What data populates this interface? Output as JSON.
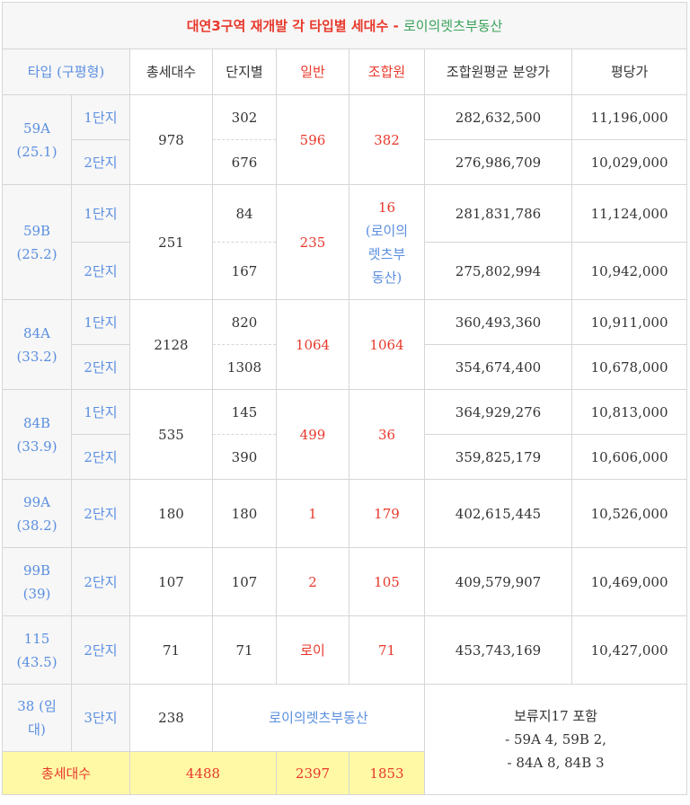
{
  "title": {
    "main": "대연3구역 재개발 각 타입별 세대수",
    "sep": " - ",
    "sub": "로이의렛츠부동산"
  },
  "headers": [
    "타입 (구평형)",
    "총세대수",
    "단지별",
    "일반",
    "조합원",
    "조합원평균 분양가",
    "평당가"
  ],
  "groups": [
    {
      "type": "59A",
      "pyeong": "(25.1)",
      "total": "978",
      "general": "596",
      "member": "382",
      "rows": [
        {
          "danji": "1단지",
          "count": "302",
          "price": "282,632,500",
          "per": "11,196,000"
        },
        {
          "danji": "2단지",
          "count": "676",
          "price": "276,986,709",
          "per": "10,029,000"
        }
      ]
    },
    {
      "type": "59B",
      "pyeong": "(25.2)",
      "total": "251",
      "general": "235",
      "member": "16",
      "member_note": [
        "(로이의",
        "렛츠부",
        "동산)"
      ],
      "rows": [
        {
          "danji": "1단지",
          "count": "84",
          "price": "281,831,786",
          "per": "11,124,000"
        },
        {
          "danji": "2단지",
          "count": "167",
          "price": "275,802,994",
          "per": "10,942,000"
        }
      ]
    },
    {
      "type": "84A",
      "pyeong": "(33.2)",
      "total": "2128",
      "general": "1064",
      "member": "1064",
      "rows": [
        {
          "danji": "1단지",
          "count": "820",
          "price": "360,493,360",
          "per": "10,911,000"
        },
        {
          "danji": "2단지",
          "count": "1308",
          "price": "354,674,400",
          "per": "10,678,000"
        }
      ]
    },
    {
      "type": "84B",
      "pyeong": "(33.9)",
      "total": "535",
      "general": "499",
      "member": "36",
      "rows": [
        {
          "danji": "1단지",
          "count": "145",
          "price": "364,929,276",
          "per": "10,813,000"
        },
        {
          "danji": "2단지",
          "count": "390",
          "price": "359,825,179",
          "per": "10,606,000"
        }
      ]
    }
  ],
  "singles": [
    {
      "type": "99A",
      "pyeong": "(38.2)",
      "danji": "2단지",
      "total": "180",
      "count": "180",
      "general": "1",
      "member": "179",
      "price": "402,615,445",
      "per": "10,526,000"
    },
    {
      "type": "99B",
      "pyeong": "(39)",
      "danji": "2단지",
      "total": "107",
      "count": "107",
      "general": "2",
      "member": "105",
      "price": "409,579,907",
      "per": "10,469,000"
    },
    {
      "type": "115",
      "pyeong": "(43.5)",
      "danji": "2단지",
      "total": "71",
      "count": "71",
      "general": "로이",
      "member": "71",
      "price": "453,743,169",
      "per": "10,427,000"
    }
  ],
  "row38": {
    "type_line1": "38 (임",
    "type_line2": "대)",
    "danji": "3단지",
    "total": "238",
    "brand": "로이의렛츠부동산"
  },
  "note": {
    "line1": "보류지17 포함",
    "line2": "- 59A 4, 59B 2,",
    "line3": "- 84A 8, 84B 3"
  },
  "totals": {
    "label": "총세대수",
    "total": "4488",
    "general": "2397",
    "member": "1853"
  }
}
